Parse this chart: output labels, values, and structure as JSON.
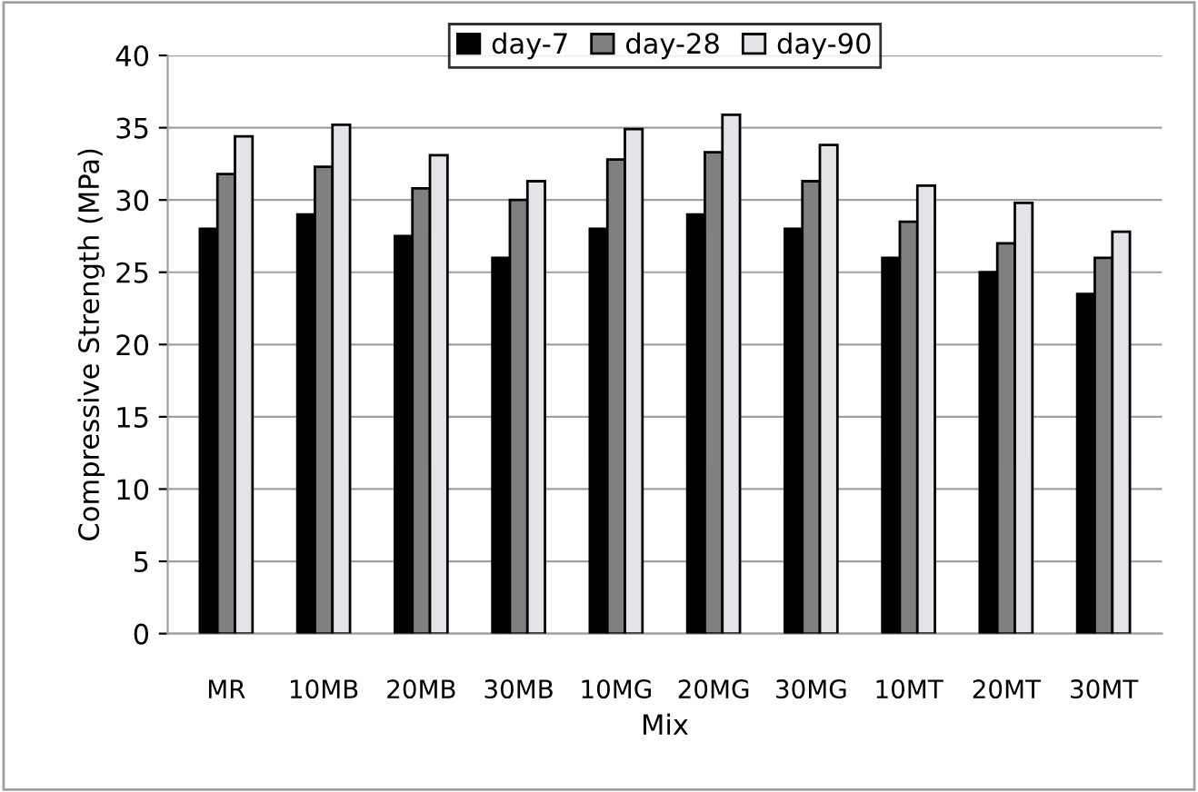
{
  "chart_data": {
    "type": "bar",
    "xlabel": "Mix",
    "ylabel": "Compressive Strength (MPa)",
    "categories": [
      "MR",
      "10MB",
      "20MB",
      "30MB",
      "10MG",
      "20MG",
      "30MG",
      "10MT",
      "20MT",
      "30MT"
    ],
    "series": [
      {
        "name": "day-7",
        "color": "#000000",
        "values": [
          28,
          29,
          27.5,
          26,
          28,
          29,
          28,
          26,
          25,
          23.5
        ]
      },
      {
        "name": "day-28",
        "color": "#808080",
        "values": [
          31.8,
          32.3,
          30.8,
          30,
          32.8,
          33.3,
          31.3,
          28.5,
          27,
          26
        ]
      },
      {
        "name": "day-90",
        "color": "#e4e4e8",
        "values": [
          34.4,
          35.2,
          33.1,
          31.3,
          34.9,
          35.9,
          33.8,
          31,
          29.8,
          27.8
        ]
      }
    ],
    "ylim": [
      0,
      40
    ],
    "yticks": [
      0,
      5,
      10,
      15,
      20,
      25,
      30,
      35,
      40
    ],
    "grid": "y",
    "legend": "top"
  }
}
